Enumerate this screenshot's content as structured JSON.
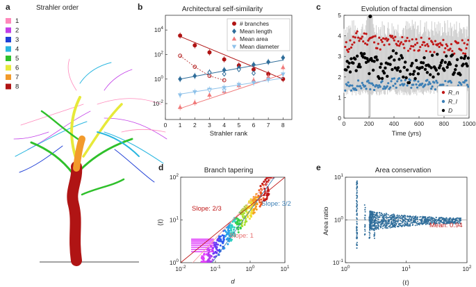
{
  "colors": {
    "strahler": [
      "#ff88bb",
      "#c23de8",
      "#1f3fd6",
      "#29b6e0",
      "#2fc02b",
      "#e7e93a",
      "#f29a2b",
      "#b01414"
    ],
    "branches": "#b01414",
    "length": "#2f6d9a",
    "area": "#f07a7a",
    "diameter": "#8fc2ea",
    "Rn": "#c01818",
    "Rl": "#3c7fb5",
    "D": "#000000"
  },
  "panel_a": {
    "letter": "a",
    "title": "Strahler order",
    "legend": [
      "1",
      "2",
      "3",
      "4",
      "5",
      "6",
      "7",
      "8"
    ]
  },
  "chart_data": [
    {
      "id": "b",
      "letter": "b",
      "type": "scatter",
      "title": "Architectural self-similarity",
      "xlabel": "Strahler rank",
      "ylabel": "",
      "xlim": [
        0,
        8.6
      ],
      "ylim_log10": [
        -3.3,
        5.2
      ],
      "x_ticks": [
        "0",
        "1",
        "2",
        "3",
        "4",
        "5",
        "6",
        "7",
        "8"
      ],
      "y_ticks": [
        "10^{-2}",
        "10^{0}",
        "10^{2}",
        "10^{4}"
      ],
      "legend_position": "top-right",
      "series": [
        {
          "name": "# branches",
          "marker": "circle",
          "x": [
            1,
            2,
            3,
            4,
            5,
            6,
            7,
            8
          ],
          "values": [
            3500,
            560,
            150,
            40,
            13,
            6,
            2.6,
            1
          ],
          "fit": [
            [
              1,
              3000
            ],
            [
              8,
              1
            ]
          ]
        },
        {
          "name": "Mean length",
          "marker": "diamond",
          "x": [
            1,
            2,
            3,
            4,
            5,
            6,
            7,
            8
          ],
          "values": [
            1.0,
            1.8,
            3.5,
            5.5,
            8,
            15,
            25,
            55
          ],
          "fit": [
            [
              1,
              1.0
            ],
            [
              8,
              35
            ]
          ]
        },
        {
          "name": "Mean area",
          "marker": "triangle-up",
          "x": [
            1,
            2,
            3,
            4,
            5,
            6,
            7,
            8
          ],
          "values": [
            0.005,
            0.012,
            0.05,
            0.1,
            0.3,
            0.8,
            1.5,
            9
          ],
          "fit": [
            [
              1,
              0.004
            ],
            [
              8,
              2.5
            ]
          ]
        },
        {
          "name": "Mean diameter",
          "marker": "triangle-down",
          "x": [
            1,
            2,
            3,
            4,
            5,
            6,
            7,
            8
          ],
          "values": [
            0.05,
            0.09,
            0.14,
            0.2,
            0.35,
            0.5,
            0.9,
            2.5
          ],
          "fit": [
            [
              1,
              0.06
            ],
            [
              8,
              1.2
            ]
          ]
        }
      ],
      "open_markers": [
        {
          "series": "# branches",
          "x": [
            1,
            2,
            3,
            4
          ],
          "values": [
            80,
            10,
            1.8,
            0.8
          ]
        },
        {
          "series": "Mean length",
          "x": [
            3,
            4,
            5,
            6
          ],
          "values": [
            3.5,
            2.6,
            6,
            3
          ]
        },
        {
          "series": "Mean diameter",
          "x": [
            3,
            4
          ],
          "values": [
            0.12,
            0.12
          ]
        }
      ]
    },
    {
      "id": "c",
      "letter": "c",
      "type": "scatter",
      "title": "Evolution of fractal dimension",
      "xlabel": "Time (yrs)",
      "ylabel": "",
      "xlim": [
        0,
        1000
      ],
      "ylim": [
        0,
        5
      ],
      "x_ticks": [
        "0",
        "200",
        "400",
        "600",
        "800",
        "1000"
      ],
      "y_ticks": [
        "0",
        "1",
        "2",
        "3",
        "4",
        "5"
      ],
      "legend_position": "bottom-right",
      "series": [
        {
          "name": "R_n",
          "x": [
            0,
            100,
            200,
            300,
            400,
            500,
            600,
            700,
            800,
            900,
            1000
          ],
          "values": [
            3.3,
            3.9,
            3.9,
            3.6,
            3.8,
            3.6,
            3.6,
            3.5,
            3.5,
            3.4,
            3.5
          ]
        },
        {
          "name": "R_l",
          "x": [
            0,
            100,
            200,
            300,
            400,
            500,
            600,
            700,
            800,
            900,
            1000
          ],
          "values": [
            1.5,
            1.6,
            1.6,
            1.6,
            1.7,
            1.7,
            1.7,
            1.6,
            1.6,
            1.6,
            1.6
          ]
        },
        {
          "name": "D",
          "x": [
            0,
            100,
            200,
            300,
            400,
            500,
            600,
            700,
            800,
            900,
            1000
          ],
          "values": [
            2.1,
            2.6,
            2.7,
            2.3,
            2.9,
            2.2,
            2.4,
            2.5,
            2.8,
            2.6,
            2.6
          ]
        }
      ]
    },
    {
      "id": "d",
      "letter": "d",
      "type": "scatter",
      "title": "Branch tapering",
      "xlabel": "d",
      "ylabel": "⟨ℓ⟩",
      "xlim_log10": [
        -2,
        1
      ],
      "ylim_log10": [
        0,
        2
      ],
      "x_ticks": [
        "10^{-2}",
        "10^{-1}",
        "10^{0}",
        "10^{1}"
      ],
      "y_ticks": [
        "10^{0}",
        "10^{1}",
        "10^{2}"
      ],
      "annotations": [
        "Slope: 2/3",
        "Slope: 1",
        "Slope: 3/2"
      ],
      "series": [
        {
          "name": "branches",
          "x": [
            0.04,
            0.1,
            0.3,
            1.0,
            3.0
          ],
          "values": [
            1.8,
            4,
            12,
            25,
            70
          ]
        }
      ]
    },
    {
      "id": "e",
      "letter": "e",
      "type": "scatter",
      "title": "Area conservation",
      "xlabel": "⟨ℓ⟩",
      "ylabel": "Area ratio",
      "xlim_log10": [
        0,
        2
      ],
      "ylim_log10": [
        -1,
        1
      ],
      "x_ticks": [
        "10^{0}",
        "10^{1}",
        "10^{2}"
      ],
      "y_ticks": [
        "10^{-1}",
        "10^{0}",
        "10^{1}"
      ],
      "annotations": [
        "Mean: 0.94"
      ],
      "series": [
        {
          "name": "area ratio",
          "x": [
            1.5,
            3,
            10,
            30,
            80
          ],
          "values": [
            1.0,
            0.95,
            0.94,
            0.93,
            0.95
          ]
        }
      ]
    }
  ]
}
